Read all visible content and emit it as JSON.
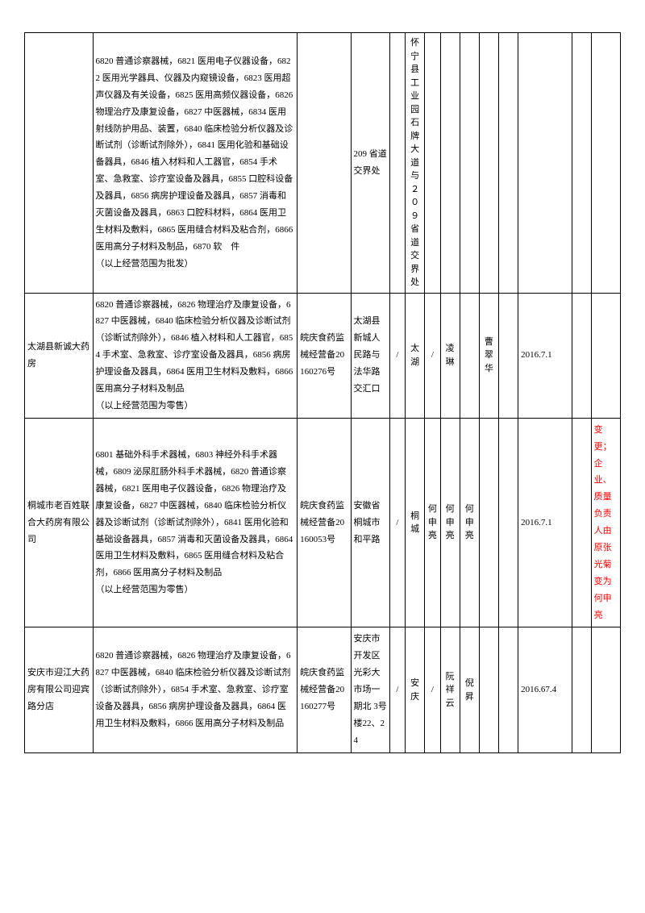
{
  "table": {
    "rows": [
      {
        "name": "",
        "scope": "6820 普通诊察器械，6821 医用电子仪器设备，6822 医用光学器具、仪器及内窥镜设备，6823 医用超声仪器及有关设备，6825 医用高频仪器设备，6826 物理治疗及康复设备，6827 中医器械，6834 医用射线防护用品、装置，6840 临床检验分析仪器及诊断试剂（诊断试剂除外），6841 医用化验和基础设备器具，6846 植入材料和人工器官，6854 手术室、急救室、诊疗室设备及器具，6855 口腔科设备及器具，6856 病房护理设备及器具，6857 消毒和灭菌设备及器具，6863 口腔科材料，6864 医用卫生材料及敷料，6865 医用缝合材料及粘合剂，6866 医用高分子材料及制品，6870 软　件\n（以上经营范围为批发）",
        "license": "",
        "addr1": "209 省道交界处",
        "sep1": "",
        "addr2": "怀宁县工业园石牌大道与２０９省道交界处",
        "sep2": "",
        "p1": "",
        "p2": "",
        "p3": "",
        "empty": "",
        "date": "",
        "sep3": "",
        "note": ""
      },
      {
        "name": "太湖县新诚大药房",
        "scope": "6820 普通诊察器械，6826 物理治疗及康复设备，6827 中医器械，6840 临床检验分析仪器及诊断试剂（诊断试剂除外），6846 植入材料和人工器官，6854 手术室、急救室、诊疗室设备及器具，6856 病房护理设备及器具，6864 医用卫生材料及敷料，6866 医用高分子材料及制品\n（以上经营范围为零售）",
        "license": "皖庆食药监械经营备20160276号",
        "addr1": "太湖县新城人民路与法华路交汇口",
        "sep1": "/",
        "addr2": "太湖",
        "sep2": "/",
        "p1": "凌琳",
        "p2": "",
        "p3": "曹翠华",
        "empty": "",
        "date": "2016.7.1",
        "sep3": "",
        "note": ""
      },
      {
        "name": "桐城市老百姓联合大药房有限公司",
        "scope": "6801 基础外科手术器械，6803 神经外科手术器械，6809 泌尿肛肠外科手术器械，6820 普通诊察器械，6821 医用电子仪器设备，6826 物理治疗及康复设备，6827 中医器械，6840 临床检验分析仪器及诊断试剂（诊断试剂除外），6841 医用化验和基础设备器具，6857 消毒和灭菌设备及器具，6864 医用卫生材料及敷料，6865 医用缝合材料及粘合剂，6866 医用高分子材料及制品\n（以上经营范围为零售）",
        "license": "皖庆食药监械经营备20160053号",
        "addr1": "安徽省桐城市和平路",
        "sep1": "/",
        "addr2": "桐城",
        "sep2": "何申亮",
        "p1": "何申亮",
        "p2": "何申亮",
        "p3": "",
        "empty": "",
        "date": "2016.7.1",
        "sep3": "",
        "note": "变更；企业、质量负责人由原张光菊变为何申亮"
      },
      {
        "name": "安庆市迎江大药房有限公司迎宾路分店",
        "scope": "6820 普通诊察器械，6826 物理治疗及康复设备，6827 中医器械，6840 临床检验分析仪器及诊断试剂（诊断试剂除外），6854 手术室、急救室、诊疗室设备及器具，6856 病房护理设备及器具，6864 医用卫生材料及敷料，6866 医用高分子材料及制品",
        "license": "皖庆食药监械经营备20160277号",
        "addr1": "安庆市开发区光彩大市场一期北 3号楼22、24",
        "sep1": "/",
        "addr2": "安庆",
        "sep2": "/",
        "p1": "阮祥云",
        "p2": "倪昇",
        "p3": "",
        "empty": "",
        "date": "2016.67.4",
        "sep3": "",
        "note": ""
      }
    ]
  }
}
